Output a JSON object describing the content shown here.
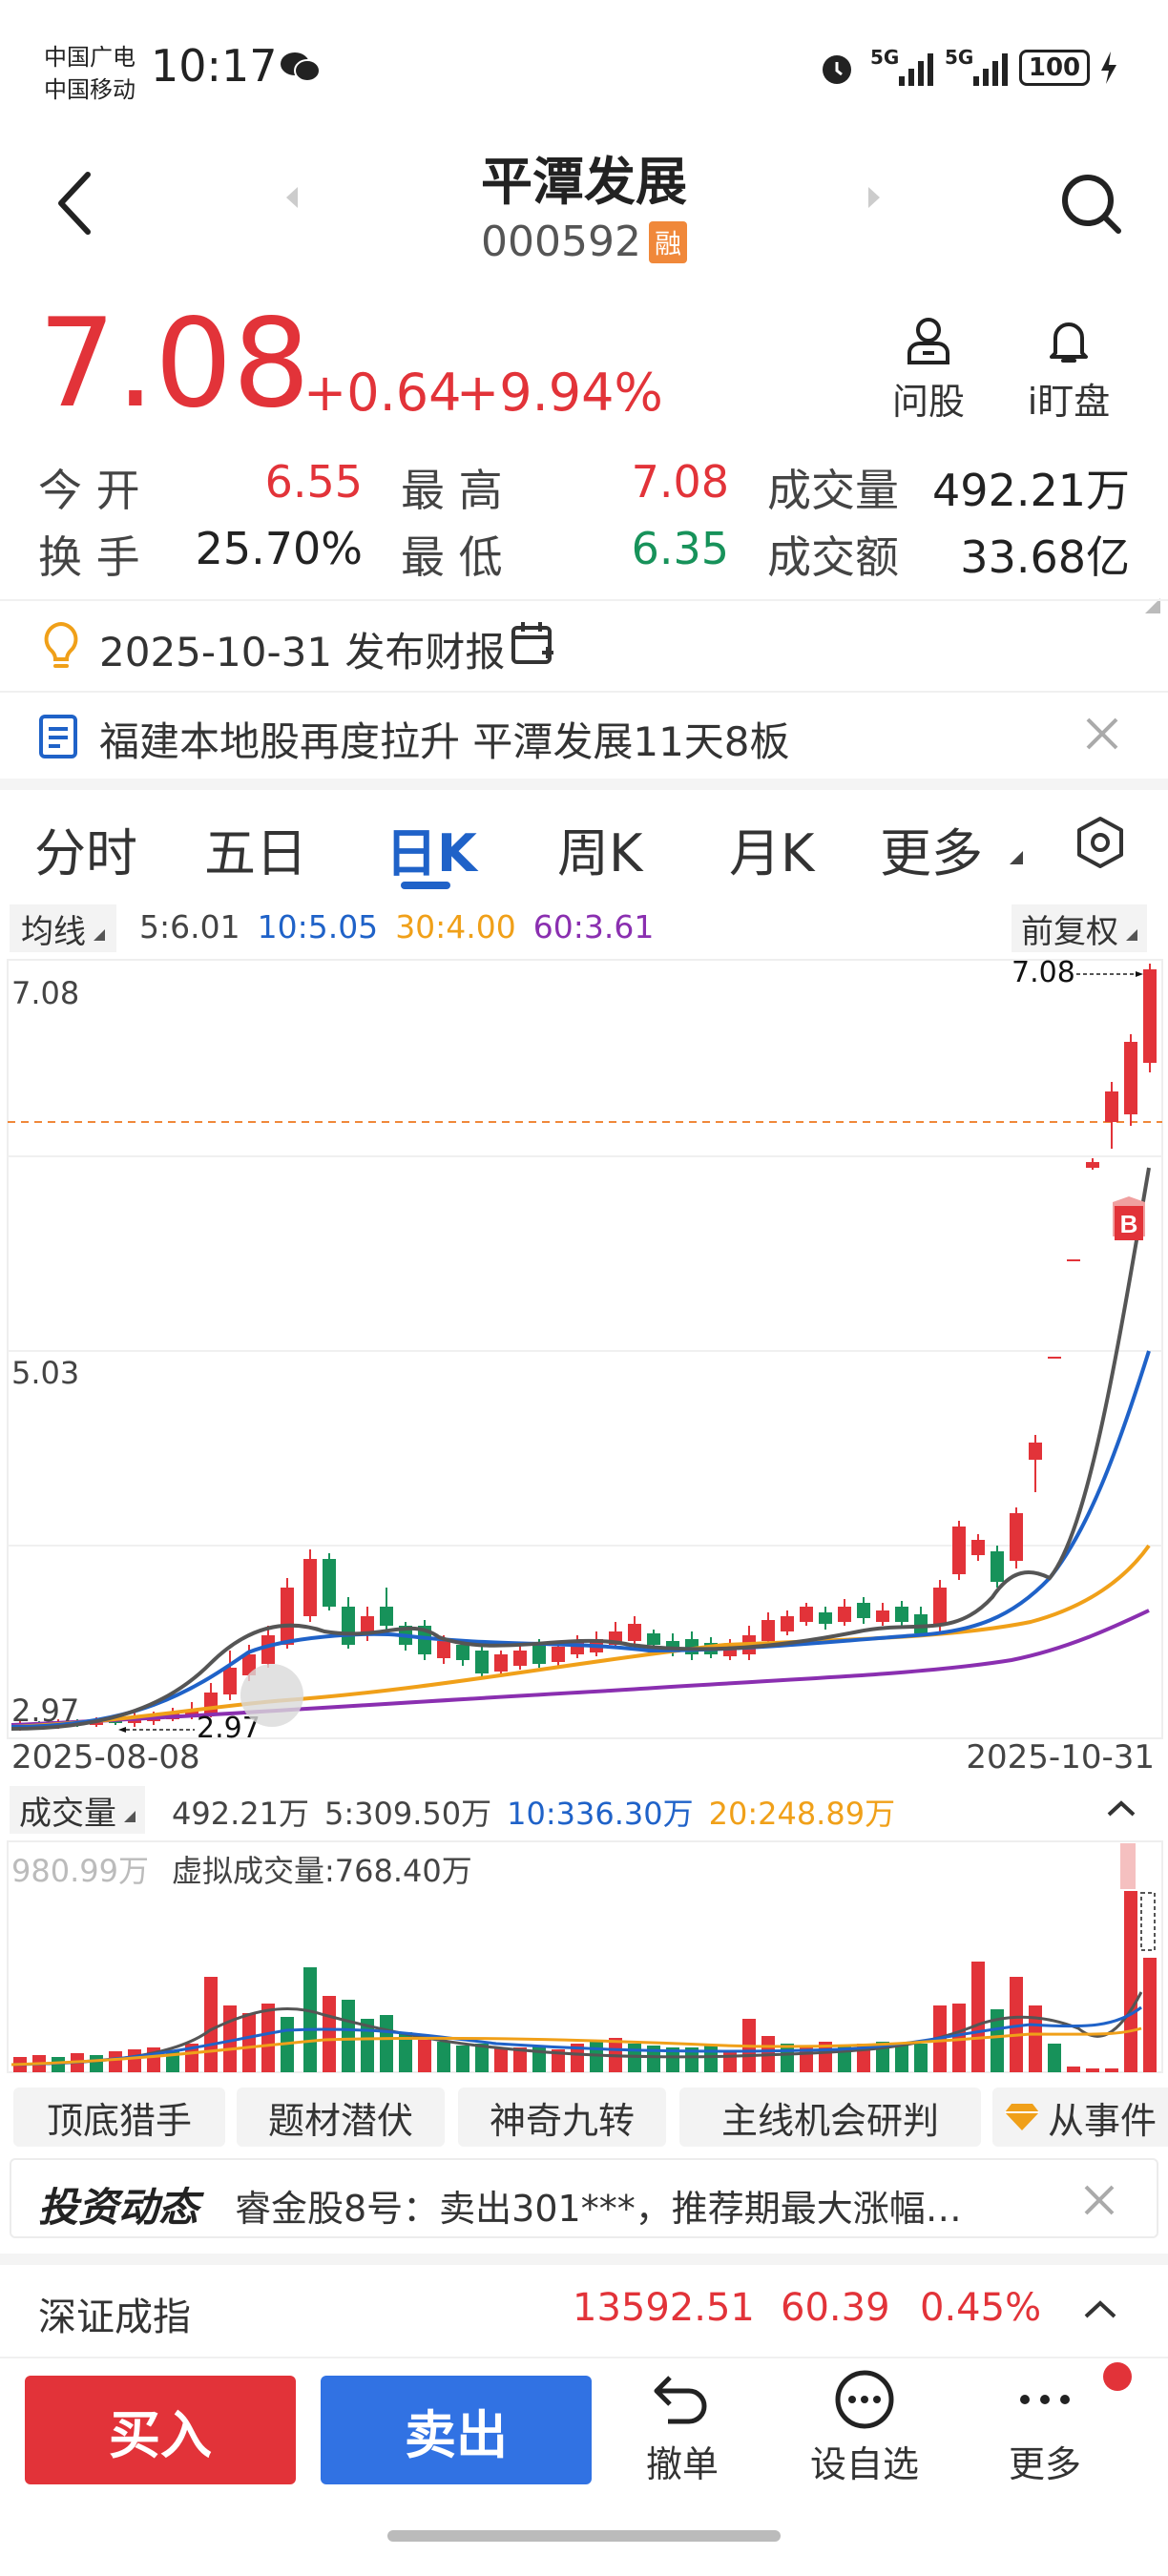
{
  "status_bar": {
    "carrier1": "中国广电",
    "carrier2": "中国移动",
    "time": "10:17",
    "signal1": "5G",
    "signal2": "5G",
    "battery": "100"
  },
  "header": {
    "name": "平潭发展",
    "code": "000592",
    "margin_badge": "融"
  },
  "quote": {
    "price": "7.08",
    "change": "+0.64",
    "change_pct": "+9.94%",
    "ask_label": "问股",
    "watch_label": "i盯盘"
  },
  "stats": {
    "open_label": "今 开",
    "open": "6.55",
    "high_label": "最 高",
    "high": "7.08",
    "volume_label": "成交量",
    "volume": "492.21万",
    "turnover_label": "换 手",
    "turnover": "25.70%",
    "low_label": "最 低",
    "low": "6.35",
    "amount_label": "成交额",
    "amount": "33.68亿"
  },
  "notices": {
    "report": "2025-10-31 发布财报",
    "news": "福建本地股再度拉升 平潭发展11天8板"
  },
  "tabs": [
    "分时",
    "五日",
    "日K",
    "周K",
    "月K",
    "更多"
  ],
  "active_tab": "日K",
  "ma_bar": {
    "selector": "均线",
    "ma5": "5:6.01",
    "ma10": "10:5.05",
    "ma30": "30:4.00",
    "ma60": "60:3.61",
    "adjust": "前复权"
  },
  "kline": {
    "y_top": "7.08",
    "y_mid": "5.03",
    "y_bottom": "2.97",
    "max_marker": "7.08",
    "min_marker": "2.97",
    "date_start": "2025-08-08",
    "date_end": "2025-10-31",
    "signal_badge": "B"
  },
  "vol_bar": {
    "selector": "成交量",
    "current": "492.21万",
    "ma5": "5:309.50万",
    "ma10": "10:336.30万",
    "ma20": "20:248.89万",
    "max_label": "980.99万",
    "virtual": "虚拟成交量:768.40万"
  },
  "chips": [
    "顶底猎手",
    "题材潜伏",
    "神奇九转",
    "主线机会研判",
    "从事件"
  ],
  "dynamic": {
    "logo": "投资动态",
    "text": "睿金股8号：卖出301***，推荐期最大涨幅…"
  },
  "index": {
    "name": "深证成指",
    "value": "13592.51",
    "change": "60.39",
    "pct": "0.45%"
  },
  "bottom": {
    "buy": "买入",
    "sell": "卖出",
    "cancel": "撤单",
    "watchlist": "设自选",
    "more": "更多"
  },
  "colors": {
    "up": "#e23339",
    "down": "#17925a",
    "buy_button": "#e23339",
    "sell_button": "#3172e3",
    "ma5": "#555555",
    "ma10": "#1f62c8",
    "ma30": "#f0a019",
    "ma60": "#8a2fb0"
  }
}
